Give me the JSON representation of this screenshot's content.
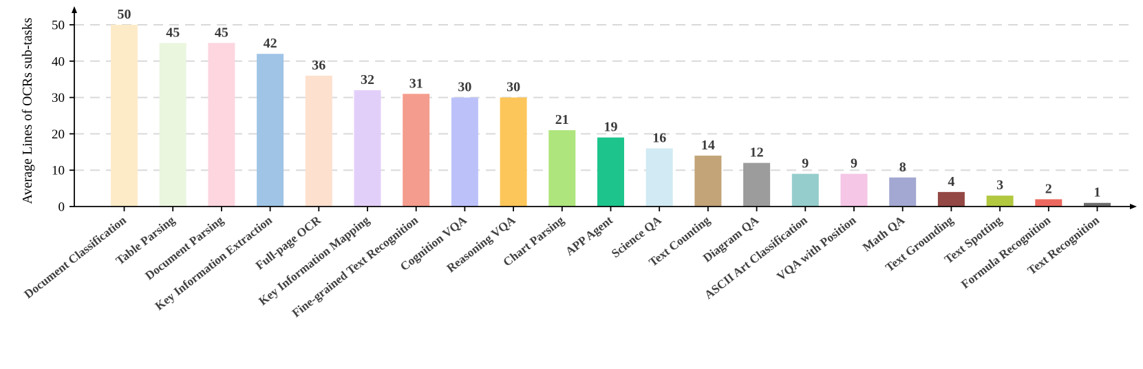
{
  "chart_data": {
    "type": "bar",
    "title": "",
    "xlabel": "",
    "ylabel": "Average Lines of OCRs sub-tasks",
    "ylim": [
      0,
      50
    ],
    "yticks": [
      0,
      10,
      20,
      30,
      40,
      50
    ],
    "grid": "horizontal dashed",
    "categories": [
      "Document Classification",
      "Table Parsing",
      "Document Parsing",
      "Key Information Extraction",
      "Full-page OCR",
      "Key Information Mapping",
      "Fine-grained Text Recognition",
      "Cognition VQA",
      "Reasoning VQA",
      "Chart Parsing",
      "APP Agent",
      "Science QA",
      "Text Counting",
      "Diagram QA",
      "ASCII Art Classification",
      "VQA with Position",
      "Math QA",
      "Text Grounding",
      "Text Spotting",
      "Formula Recognition",
      "Text Recognition"
    ],
    "values": [
      50,
      45,
      45,
      42,
      36,
      32,
      31,
      30,
      30,
      21,
      19,
      16,
      14,
      12,
      9,
      9,
      8,
      4,
      3,
      2,
      1
    ],
    "colors": [
      "#fdebc8",
      "#eaf6de",
      "#fdd6e0",
      "#9fc4e6",
      "#fde0cd",
      "#e2cff9",
      "#f49c8d",
      "#bcc2f9",
      "#fdc65a",
      "#aee57c",
      "#1dc58c",
      "#d1eaf3",
      "#c2a478",
      "#9c9c9c",
      "#95cdcc",
      "#f5c6e6",
      "#a3a8d2",
      "#944845",
      "#b1c83f",
      "#ec685f",
      "#6c6c6c"
    ]
  }
}
